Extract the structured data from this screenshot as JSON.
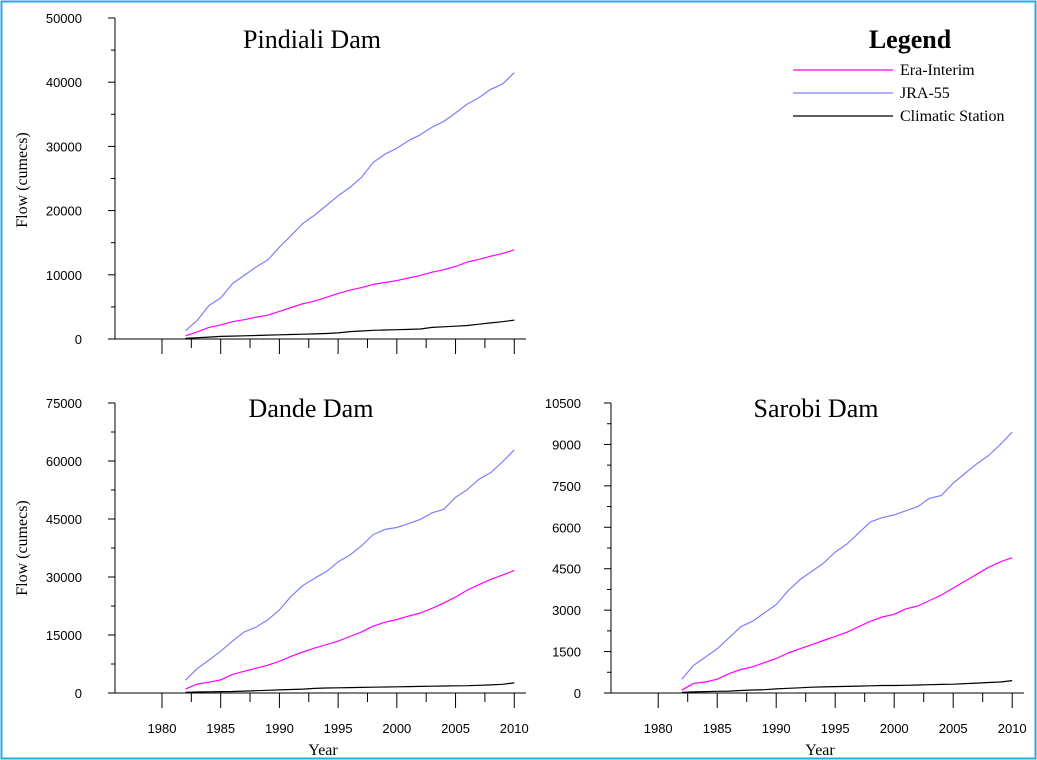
{
  "legend": {
    "title": "Legend",
    "entries": [
      {
        "name": "Era-Interim",
        "color": "#ff00ff"
      },
      {
        "name": "JRA-55",
        "color": "#7f7fff"
      },
      {
        "name": "Climatic Station",
        "color": "#000000"
      }
    ]
  },
  "chart_data": [
    {
      "type": "line",
      "title": "Pindiali Dam",
      "xlabel": "",
      "ylabel": "Flow (cumecs)",
      "xlim": [
        1976,
        2011
      ],
      "ylim": [
        0,
        50000
      ],
      "yticks": [
        0,
        10000,
        20000,
        30000,
        40000,
        50000
      ],
      "xticks": [],
      "x": [
        1982,
        1983,
        1984,
        1985,
        1986,
        1987,
        1988,
        1989,
        1990,
        1991,
        1992,
        1993,
        1994,
        1995,
        1996,
        1997,
        1998,
        1999,
        2000,
        2001,
        2002,
        2003,
        2004,
        2005,
        2006,
        2007,
        2008,
        2009,
        2010
      ],
      "series": [
        {
          "name": "Era-Interim",
          "color": "#ff00ff",
          "values": [
            500,
            1100,
            1800,
            2200,
            2700,
            3000,
            3400,
            3700,
            4300,
            4900,
            5500,
            5900,
            6500,
            7100,
            7600,
            8000,
            8500,
            8800,
            9100,
            9500,
            9900,
            10400,
            10800,
            11300,
            12000,
            12400,
            12900,
            13300,
            13900
          ]
        },
        {
          "name": "JRA-55",
          "color": "#7f7fff",
          "values": [
            1300,
            2900,
            5200,
            6400,
            8600,
            9900,
            11200,
            12300,
            14300,
            16100,
            18000,
            19300,
            20800,
            22300,
            23600,
            25200,
            27500,
            28800,
            29700,
            30900,
            31800,
            33000,
            33900,
            35200,
            36600,
            37600,
            38900,
            39700,
            41500
          ]
        },
        {
          "name": "Climatic Station",
          "color": "#000000",
          "values": [
            100,
            200,
            300,
            400,
            450,
            500,
            550,
            600,
            650,
            700,
            750,
            800,
            850,
            950,
            1150,
            1250,
            1350,
            1400,
            1450,
            1500,
            1550,
            1800,
            1900,
            2000,
            2100,
            2300,
            2500,
            2700,
            2950
          ]
        }
      ]
    },
    {
      "type": "line",
      "title": "Dande Dam",
      "xlabel": "Year",
      "ylabel": "Flow (cumecs)",
      "xlim": [
        1976,
        2011
      ],
      "ylim": [
        0,
        75000
      ],
      "yticks": [
        0,
        15000,
        30000,
        45000,
        60000,
        75000
      ],
      "xticks": [
        1980,
        1985,
        1990,
        1995,
        2000,
        2005,
        2010
      ],
      "x": [
        1982,
        1983,
        1984,
        1985,
        1986,
        1987,
        1988,
        1989,
        1990,
        1991,
        1992,
        1993,
        1994,
        1995,
        1996,
        1997,
        1998,
        1999,
        2000,
        2001,
        2002,
        2003,
        2004,
        2005,
        2006,
        2007,
        2008,
        2009,
        2010
      ],
      "series": [
        {
          "name": "Era-Interim",
          "color": "#ff00ff",
          "values": [
            1000,
            2300,
            2800,
            3400,
            4800,
            5600,
            6400,
            7200,
            8200,
            9500,
            10600,
            11600,
            12500,
            13400,
            14600,
            15800,
            17300,
            18300,
            19000,
            19900,
            20700,
            21900,
            23300,
            24800,
            26600,
            28000,
            29400,
            30500,
            31700
          ]
        },
        {
          "name": "JRA-55",
          "color": "#7f7fff",
          "values": [
            3300,
            6300,
            8500,
            10800,
            13400,
            15800,
            17000,
            18900,
            21500,
            25000,
            27800,
            29700,
            31400,
            33900,
            35700,
            38100,
            41000,
            42300,
            42800,
            43800,
            44900,
            46600,
            47500,
            50600,
            52600,
            55300,
            57000,
            59800,
            62900
          ]
        },
        {
          "name": "Climatic Station",
          "color": "#000000",
          "values": [
            150,
            250,
            300,
            350,
            400,
            500,
            600,
            700,
            800,
            900,
            1000,
            1200,
            1300,
            1350,
            1400,
            1450,
            1500,
            1550,
            1600,
            1650,
            1700,
            1750,
            1800,
            1850,
            1900,
            2000,
            2100,
            2250,
            2600
          ]
        }
      ]
    },
    {
      "type": "line",
      "title": "Sarobi Dam",
      "xlabel": "Year",
      "ylabel": "",
      "xlim": [
        1976,
        2011
      ],
      "ylim": [
        0,
        10500
      ],
      "yticks": [
        0,
        1500,
        3000,
        4500,
        6000,
        7500,
        9000,
        10500
      ],
      "xticks": [
        1980,
        1985,
        1990,
        1995,
        2000,
        2005,
        2010
      ],
      "x": [
        1982,
        1983,
        1984,
        1985,
        1986,
        1987,
        1988,
        1989,
        1990,
        1991,
        1992,
        1993,
        1994,
        1995,
        1996,
        1997,
        1998,
        1999,
        2000,
        2001,
        2002,
        2003,
        2004,
        2005,
        2006,
        2007,
        2008,
        2009,
        2010
      ],
      "series": [
        {
          "name": "Era-Interim",
          "color": "#ff00ff",
          "values": [
            100,
            350,
            400,
            500,
            700,
            850,
            950,
            1100,
            1250,
            1450,
            1600,
            1750,
            1900,
            2050,
            2200,
            2400,
            2600,
            2750,
            2850,
            3050,
            3150,
            3350,
            3550,
            3800,
            4050,
            4300,
            4550,
            4750,
            4900
          ]
        },
        {
          "name": "JRA-55",
          "color": "#7f7fff",
          "values": [
            500,
            1000,
            1300,
            1600,
            2000,
            2400,
            2600,
            2900,
            3200,
            3700,
            4100,
            4400,
            4700,
            5100,
            5400,
            5800,
            6200,
            6350,
            6450,
            6600,
            6750,
            7050,
            7150,
            7600,
            7950,
            8300,
            8600,
            9000,
            9450
          ]
        },
        {
          "name": "Climatic Station",
          "color": "#000000",
          "values": [
            20,
            40,
            50,
            60,
            70,
            90,
            110,
            120,
            150,
            170,
            190,
            210,
            220,
            230,
            240,
            250,
            260,
            270,
            270,
            280,
            290,
            300,
            310,
            320,
            340,
            360,
            380,
            400,
            450
          ]
        }
      ]
    }
  ]
}
